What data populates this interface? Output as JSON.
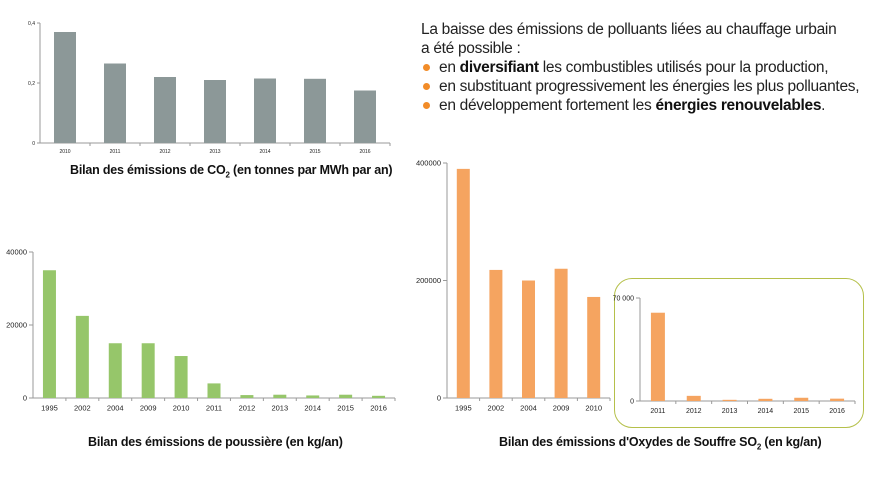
{
  "intro": {
    "line1": "La baisse des émissions de polluants liées au chauffage urbain",
    "line2": "a été possible :",
    "bullets": [
      {
        "pre": "en ",
        "bold": "diversifiant",
        "post": " les combustibles utilisés pour la production,"
      },
      {
        "pre": "en substituant progressivement les énergies les plus polluantes,",
        "bold": "",
        "post": ""
      },
      {
        "pre": "en développement fortement les ",
        "bold": "énergies renouvelables",
        "post": "."
      }
    ]
  },
  "captions": {
    "co2_pre": "Bilan des émissions de CO",
    "co2_sub": "2",
    "co2_post": " (en tonnes par MWh par an)",
    "dust": "Bilan des émissions de poussière (en kg/an)",
    "so2_pre": "Bilan des émissions d'Oxydes de Souffre SO",
    "so2_sub": "2",
    "so2_post": " (en kg/an)"
  },
  "colors": {
    "co2": "#8c9898",
    "dust": "#96c66a",
    "so2": "#f5a460",
    "axis": "#9a9a9a",
    "inset_border": "#b5c04a"
  },
  "chart_data": [
    {
      "id": "co2",
      "type": "bar",
      "categories": [
        "2010",
        "2011",
        "2012",
        "2013",
        "2014",
        "2015",
        "2016"
      ],
      "values": [
        0.37,
        0.265,
        0.22,
        0.21,
        0.215,
        0.214,
        0.175
      ],
      "ylim": [
        0,
        0.4
      ],
      "yticks": [
        0,
        0.2,
        0.4
      ],
      "ytick_labels": [
        "0",
        "0,2",
        "0,4"
      ],
      "xlabel": "",
      "ylabel": "",
      "grid": false
    },
    {
      "id": "dust",
      "type": "bar",
      "categories": [
        "1995",
        "2002",
        "2004",
        "2009",
        "2010",
        "2011",
        "2012",
        "2013",
        "2014",
        "2015",
        "2016"
      ],
      "values": [
        35000,
        22500,
        15000,
        15000,
        11500,
        4000,
        800,
        900,
        700,
        900,
        600
      ],
      "ylim": [
        0,
        40000
      ],
      "yticks": [
        0,
        20000,
        40000
      ],
      "ytick_labels": [
        "0",
        "20000",
        "40000"
      ],
      "xlabel": "",
      "ylabel": "",
      "grid": false
    },
    {
      "id": "so2",
      "type": "bar",
      "categories": [
        "1995",
        "2002",
        "2004",
        "2009",
        "2010"
      ],
      "values": [
        390000,
        218000,
        200000,
        220000,
        172000
      ],
      "ylim": [
        0,
        400000
      ],
      "yticks": [
        0,
        200000,
        400000
      ],
      "ytick_labels": [
        "0",
        "200000",
        "400000"
      ],
      "xlabel": "",
      "ylabel": "",
      "grid": false
    },
    {
      "id": "so2_inset",
      "type": "bar",
      "categories": [
        "2011",
        "2012",
        "2013",
        "2014",
        "2015",
        "2016"
      ],
      "values": [
        60000,
        3500,
        800,
        1500,
        2200,
        1600
      ],
      "ylim": [
        0,
        70000
      ],
      "yticks": [
        0,
        70000
      ],
      "ytick_labels": [
        "0",
        "70 000"
      ],
      "xlabel": "",
      "ylabel": "",
      "grid": false
    }
  ]
}
